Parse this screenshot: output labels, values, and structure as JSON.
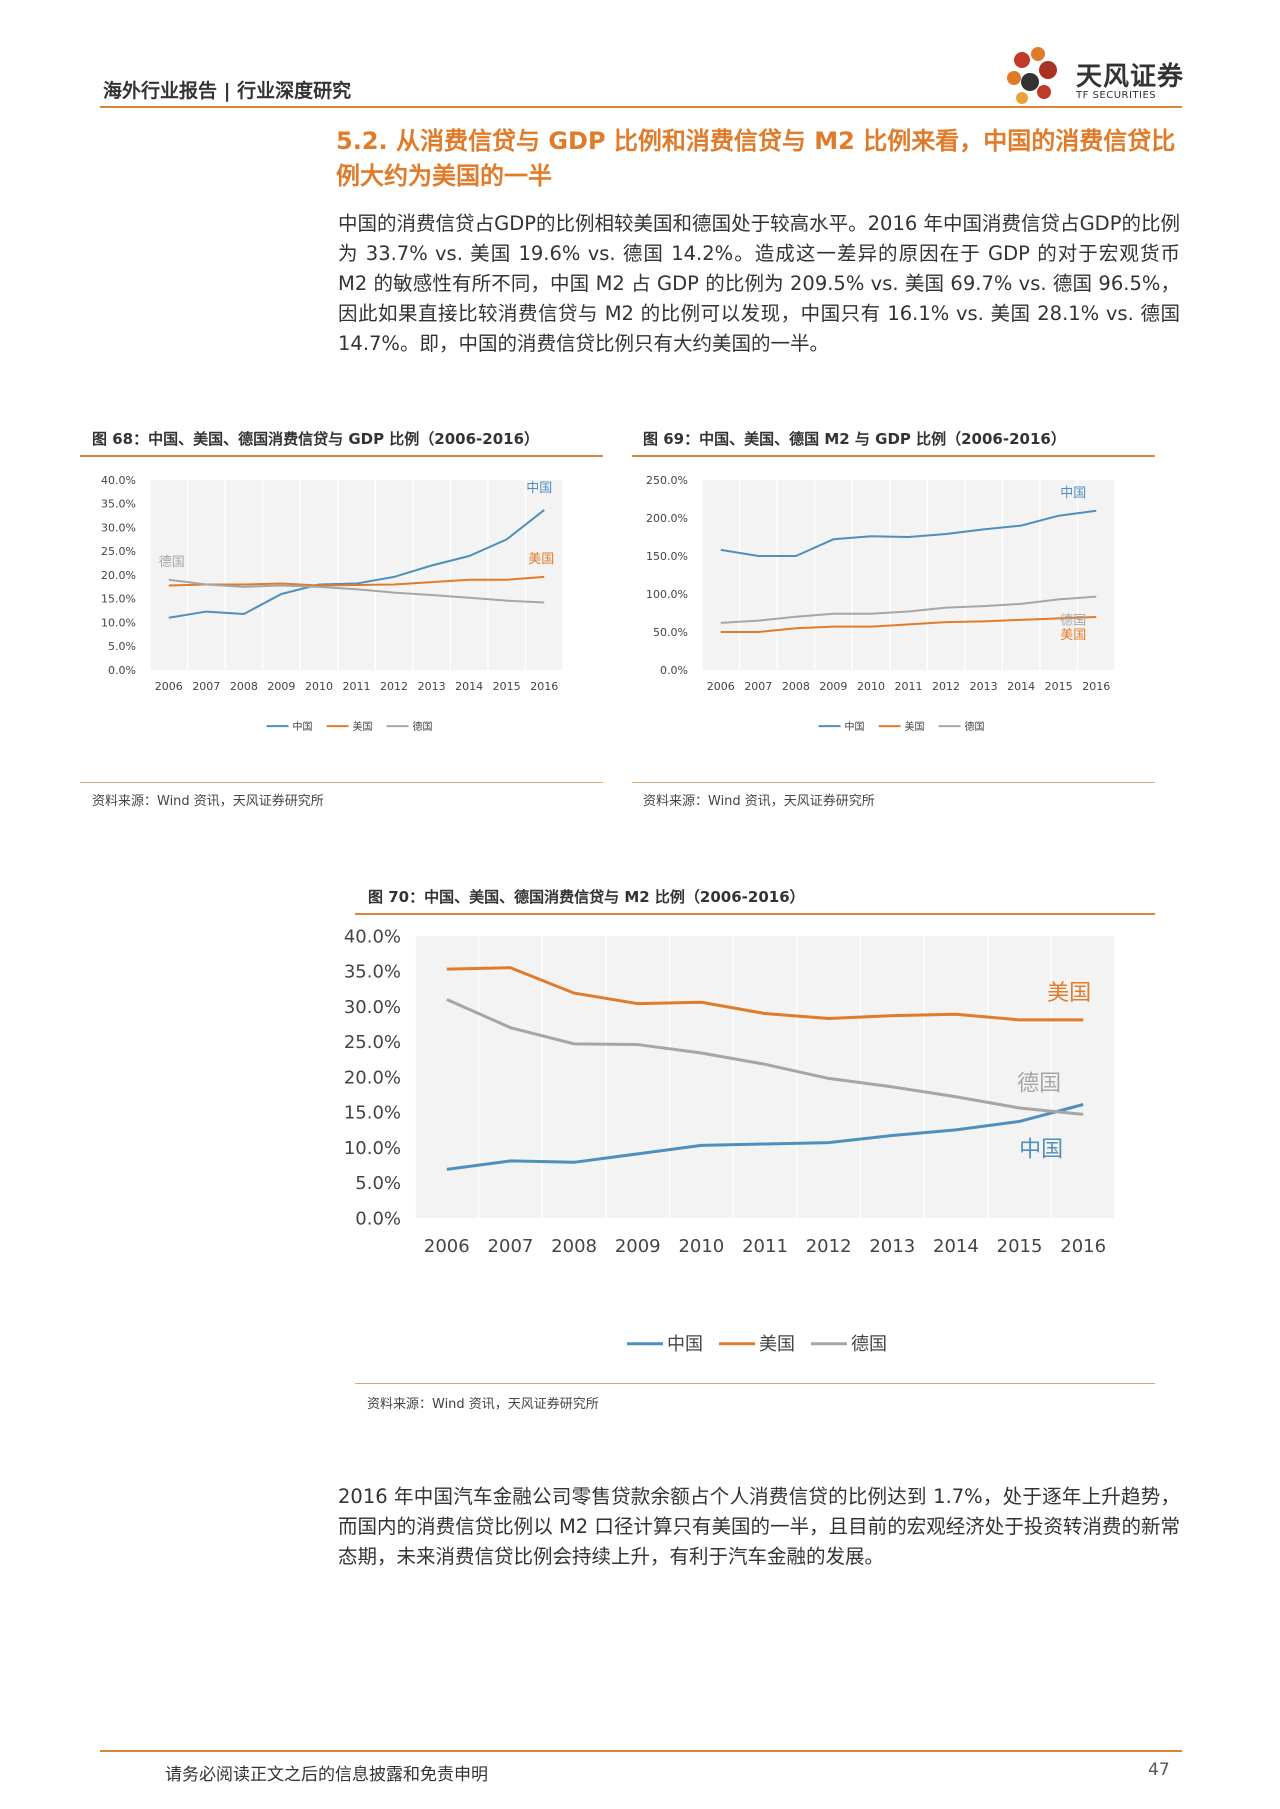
{
  "header": {
    "report_type": "海外行业报告 | 行业深度研究",
    "logo_cn": "天风证券",
    "logo_en": "TF SECURITIES"
  },
  "section_heading": "5.2. 从消费信贷与 GDP 比例和消费信贷与 M2 比例来看，中国的消费信贷比例大约为美国的一半",
  "paragraph1": "中国的消费信贷占GDP的比例相较美国和德国处于较高水平。2016 年中国消费信贷占GDP的比例为 33.7% vs. 美国 19.6% vs. 德国 14.2%。造成这一差异的原因在于 GDP 的对于宏观货币 M2 的敏感性有所不同，中国 M2 占 GDP 的比例为 209.5% vs. 美国 69.7% vs. 德国 96.5%，因此如果直接比较消费信贷与 M2 的比例可以发现，中国只有 16.1% vs. 美国 28.1% vs. 德国 14.7%。即，中国的消费信贷比例只有大约美国的一半。",
  "paragraph2": "2016 年中国汽车金融公司零售贷款余额占个人消费信贷的比例达到 1.7%，处于逐年上升趋势，而国内的消费信贷比例以 M2 口径计算只有美国的一半，且目前的宏观经济处于投资转消费的新常态期，未来消费信贷比例会持续上升，有利于汽车金融的发展。",
  "footer": {
    "disclaimer": "请务必阅读正文之后的信息披露和免责申明",
    "page": "47"
  },
  "colors": {
    "china": "#4f8fbd",
    "usa": "#e07b2a",
    "germany": "#a6a6a6",
    "accent": "#d9843b",
    "heading": "#e07b2a"
  },
  "chart_data": [
    {
      "id": "fig68",
      "type": "line",
      "title": "图 68：中国、美国、德国消费信贷与 GDP 比例（2006-2016）",
      "source": "资料来源：Wind 资讯，天风证券研究所",
      "categories": [
        "2006",
        "2007",
        "2008",
        "2009",
        "2010",
        "2011",
        "2012",
        "2013",
        "2014",
        "2015",
        "2016"
      ],
      "ylim": [
        0,
        40
      ],
      "yticks": [
        "0.0%",
        "5.0%",
        "10.0%",
        "15.0%",
        "20.0%",
        "25.0%",
        "30.0%",
        "35.0%",
        "40.0%"
      ],
      "legend": "bottom",
      "series": [
        {
          "name": "中国",
          "key": "china",
          "values": [
            11.0,
            12.3,
            11.8,
            16.0,
            18.0,
            18.2,
            19.6,
            22.0,
            24.0,
            27.5,
            33.7
          ],
          "label": "中国"
        },
        {
          "name": "美国",
          "key": "usa",
          "values": [
            17.8,
            18.0,
            18.0,
            18.2,
            17.8,
            17.9,
            18.0,
            18.5,
            19.0,
            19.0,
            19.6
          ],
          "label": "美国"
        },
        {
          "name": "德国",
          "key": "germany",
          "values": [
            19.0,
            18.0,
            17.5,
            17.8,
            17.5,
            17.0,
            16.3,
            15.8,
            15.2,
            14.6,
            14.2
          ],
          "label": "德国"
        }
      ]
    },
    {
      "id": "fig69",
      "type": "line",
      "title": "图 69：中国、美国、德国 M2 与 GDP 比例（2006-2016）",
      "source": "资料来源：Wind 资讯，天风证券研究所",
      "categories": [
        "2006",
        "2007",
        "2008",
        "2009",
        "2010",
        "2011",
        "2012",
        "2013",
        "2014",
        "2015",
        "2016"
      ],
      "ylim": [
        0,
        250
      ],
      "yticks": [
        "0.0%",
        "50.0%",
        "100.0%",
        "150.0%",
        "200.0%",
        "250.0%"
      ],
      "legend": "bottom",
      "series": [
        {
          "name": "中国",
          "key": "china",
          "values": [
            158,
            150,
            150,
            172,
            176,
            175,
            179,
            185,
            190,
            203,
            209.5
          ],
          "label": "中国"
        },
        {
          "name": "美国",
          "key": "usa",
          "values": [
            50,
            50,
            55,
            57,
            57,
            60,
            63,
            64,
            66,
            68,
            69.7
          ],
          "label": "美国"
        },
        {
          "name": "德国",
          "key": "germany",
          "values": [
            62,
            65,
            70,
            74,
            74,
            77,
            82,
            84,
            87,
            93,
            96.5
          ],
          "label": "德国"
        }
      ]
    },
    {
      "id": "fig70",
      "type": "line",
      "title": "图 70：中国、美国、德国消费信贷与 M2 比例（2006-2016）",
      "source": "资料来源：Wind 资讯，天风证券研究所",
      "categories": [
        "2006",
        "2007",
        "2008",
        "2009",
        "2010",
        "2011",
        "2012",
        "2013",
        "2014",
        "2015",
        "2016"
      ],
      "ylim": [
        0,
        40
      ],
      "yticks": [
        "0.0%",
        "5.0%",
        "10.0%",
        "15.0%",
        "20.0%",
        "25.0%",
        "30.0%",
        "35.0%",
        "40.0%"
      ],
      "legend": "bottom",
      "series": [
        {
          "name": "中国",
          "key": "china",
          "values": [
            6.9,
            8.1,
            7.9,
            9.1,
            10.3,
            10.5,
            10.7,
            11.7,
            12.5,
            13.7,
            16.1
          ],
          "label": "中国"
        },
        {
          "name": "美国",
          "key": "usa",
          "values": [
            35.3,
            35.5,
            31.9,
            30.4,
            30.6,
            29.0,
            28.3,
            28.7,
            28.9,
            28.1,
            28.1
          ],
          "label": "美国"
        },
        {
          "name": "德国",
          "key": "germany",
          "values": [
            31.0,
            27.0,
            24.7,
            24.6,
            23.4,
            21.8,
            19.8,
            18.6,
            17.2,
            15.6,
            14.7
          ],
          "label": "德国"
        }
      ]
    }
  ]
}
